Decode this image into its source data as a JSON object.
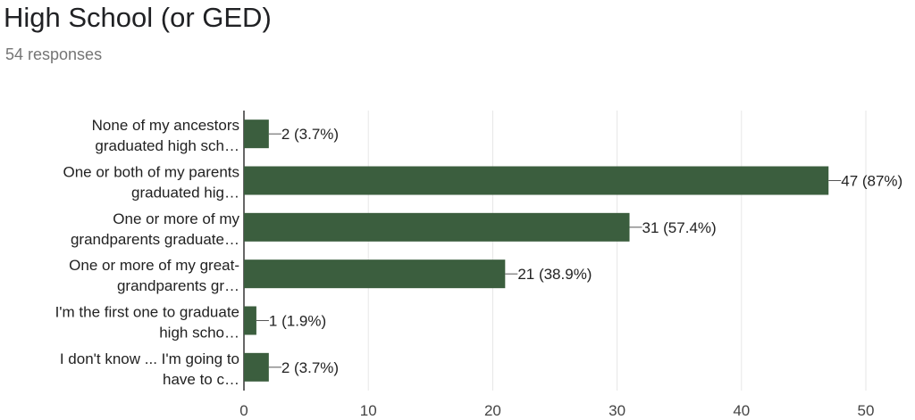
{
  "header": {
    "title": "High School (or GED)",
    "responses": "54 responses"
  },
  "colors": {
    "bar": "#3b5e3e",
    "grid": "#e6e6e6",
    "axis": "#333333"
  },
  "chart_data": {
    "type": "bar",
    "orientation": "horizontal",
    "categories": [
      [
        "None of my ancestors",
        "graduated high sch…"
      ],
      [
        "One or both of my parents",
        "graduated hig…"
      ],
      [
        "One or more of my",
        "grandparents graduate…"
      ],
      [
        "One or more of my great-",
        "grandparents gr…"
      ],
      [
        "I'm the first one to graduate",
        "high scho…"
      ],
      [
        "I don't know ... I'm going to",
        "have to c…"
      ]
    ],
    "values": [
      2,
      47,
      31,
      21,
      1,
      2
    ],
    "data_labels": [
      "2 (3.7%)",
      "47 (87%)",
      "31 (57.4%)",
      "21 (38.9%)",
      "1 (1.9%)",
      "2 (3.7%)"
    ],
    "xlim": [
      0,
      50
    ],
    "xticks": [
      "0",
      "10",
      "20",
      "30",
      "40",
      "50"
    ],
    "grid": true
  }
}
